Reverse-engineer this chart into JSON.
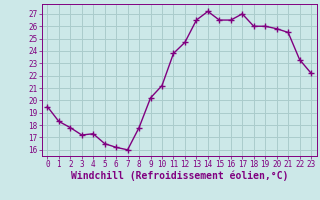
{
  "x": [
    0,
    1,
    2,
    3,
    4,
    5,
    6,
    7,
    8,
    9,
    10,
    11,
    12,
    13,
    14,
    15,
    16,
    17,
    18,
    19,
    20,
    21,
    22,
    23
  ],
  "y": [
    19.5,
    18.3,
    17.8,
    17.2,
    17.3,
    16.5,
    16.2,
    16.0,
    17.8,
    20.2,
    21.2,
    23.8,
    24.7,
    26.5,
    27.2,
    26.5,
    26.5,
    27.0,
    26.0,
    26.0,
    25.8,
    25.5,
    23.3,
    22.2
  ],
  "line_color": "#800080",
  "marker": "+",
  "marker_size": 4,
  "bg_color": "#cce8e8",
  "grid_color": "#aacccc",
  "xlabel": "Windchill (Refroidissement éolien,°C)",
  "xlabel_color": "#800080",
  "xlim": [
    -0.5,
    23.5
  ],
  "ylim": [
    15.5,
    27.8
  ],
  "yticks": [
    16,
    17,
    18,
    19,
    20,
    21,
    22,
    23,
    24,
    25,
    26,
    27
  ],
  "xticks": [
    0,
    1,
    2,
    3,
    4,
    5,
    6,
    7,
    8,
    9,
    10,
    11,
    12,
    13,
    14,
    15,
    16,
    17,
    18,
    19,
    20,
    21,
    22,
    23
  ],
  "tick_color": "#800080",
  "tick_fontsize": 5.5,
  "xlabel_fontsize": 7.0,
  "line_width": 1.0
}
